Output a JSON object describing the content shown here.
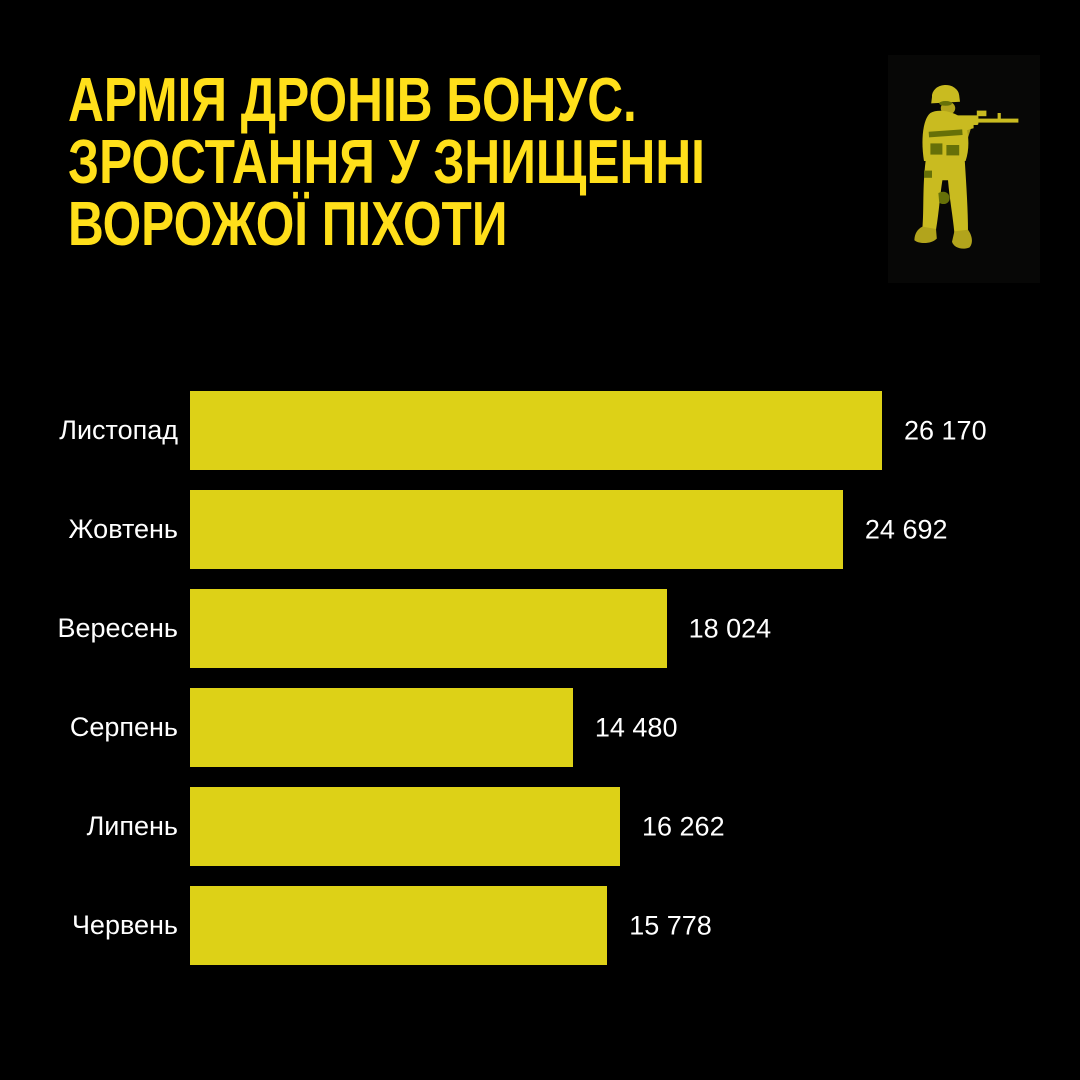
{
  "page": {
    "background_color": "#000000",
    "accent_color": "#ffdf1a"
  },
  "header": {
    "title_lines": [
      "АРМІЯ ДРОНІВ БОНУС.",
      "ЗРОСТАННЯ У ЗНИЩЕННІ",
      "ВОРОЖОЇ ПІХОТИ"
    ],
    "title_color": "#ffdf1a",
    "icon": "soldier-with-rifle-icon"
  },
  "chart_data": {
    "type": "bar",
    "orientation": "horizontal",
    "title": "",
    "xlabel": "",
    "ylabel": "",
    "categories": [
      "Листопад",
      "Жовтень",
      "Вересень",
      "Серпень",
      "Липень",
      "Червень"
    ],
    "values": [
      26170,
      24692,
      18024,
      14480,
      16262,
      15778
    ],
    "value_labels": [
      "26 170",
      "24 692",
      "18 024",
      "14 480",
      "16 262",
      "15 778"
    ],
    "xlim": [
      0,
      26170
    ],
    "bar_color": "#ddd117",
    "label_color": "#ffffff",
    "grid": false,
    "legend": false
  }
}
